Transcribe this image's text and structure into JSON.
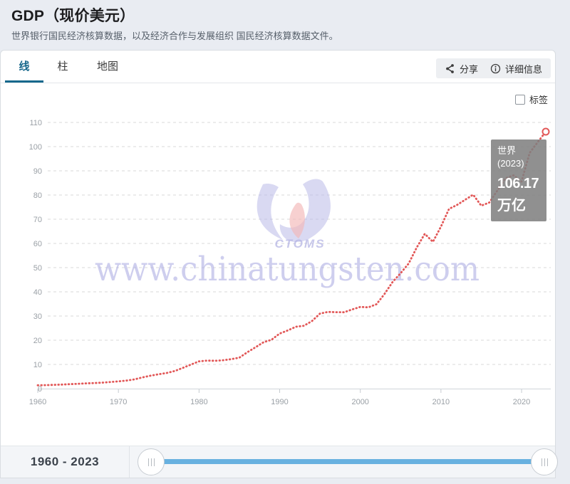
{
  "page": {
    "title": "GDP（现价美元）",
    "subtitle": "世界银行国民经济核算数据，以及经济合作与发展组织 国民经济核算数据文件。"
  },
  "tabs": [
    {
      "label": "线",
      "active": true
    },
    {
      "label": "柱",
      "active": false
    },
    {
      "label": "地图",
      "active": false
    }
  ],
  "toolbar": {
    "share": "分享",
    "details": "详细信息"
  },
  "chart_controls": {
    "labels_checkbox": "标签",
    "checked": false
  },
  "tooltip": {
    "series": "世界",
    "year_label": "(2023)",
    "value": "106.17",
    "unit": "万亿"
  },
  "watermark": {
    "url_text": "www.chinatungsten.com",
    "logo_text": "CTOMS"
  },
  "range_bar": {
    "label": "1960 - 2023"
  },
  "colors": {
    "accent_tab": "#17688c",
    "line": "#e25858",
    "slider_track": "#68b1e0",
    "tooltip_bg": "rgba(127,127,127,0.87)",
    "watermark_text": "#adade3",
    "grid": "#dadada",
    "axis_label": "#9aa0a6"
  },
  "chart_data": {
    "type": "line",
    "title": "GDP（现价美元）",
    "unit": "万亿",
    "legend": "none",
    "grid": "horizontal-dashed",
    "line_style": "dotted",
    "ylim": [
      0,
      110
    ],
    "ytick_step": 10,
    "xticks": [
      1960,
      1970,
      1980,
      1990,
      2000,
      2010,
      2020
    ],
    "years": [
      1960,
      1961,
      1962,
      1963,
      1964,
      1965,
      1966,
      1967,
      1968,
      1969,
      1970,
      1971,
      1972,
      1973,
      1974,
      1975,
      1976,
      1977,
      1978,
      1979,
      1980,
      1981,
      1982,
      1983,
      1984,
      1985,
      1986,
      1987,
      1988,
      1989,
      1990,
      1991,
      1992,
      1993,
      1994,
      1995,
      1996,
      1997,
      1998,
      1999,
      2000,
      2001,
      2002,
      2003,
      2004,
      2005,
      2006,
      2007,
      2008,
      2009,
      2010,
      2011,
      2012,
      2013,
      2014,
      2015,
      2016,
      2017,
      2018,
      2019,
      2020,
      2021,
      2022,
      2023
    ],
    "series": [
      {
        "name": "世界",
        "values": [
          1.39,
          1.45,
          1.56,
          1.68,
          1.84,
          2.0,
          2.17,
          2.3,
          2.48,
          2.74,
          3.0,
          3.31,
          3.82,
          4.64,
          5.34,
          5.95,
          6.46,
          7.29,
          8.58,
          9.95,
          11.27,
          11.59,
          11.49,
          11.75,
          12.17,
          12.79,
          15.07,
          17.1,
          19.18,
          20.22,
          22.76,
          24.02,
          25.56,
          25.97,
          27.92,
          31.01,
          31.71,
          31.6,
          31.57,
          32.73,
          33.76,
          33.59,
          34.86,
          39.11,
          44.05,
          47.72,
          51.72,
          58.32,
          63.97,
          60.66,
          66.96,
          74.26,
          75.91,
          78.02,
          80.16,
          75.6,
          76.9,
          81.86,
          86.9,
          88.14,
          85.59,
          97.41,
          101.86,
          106.17
        ]
      }
    ],
    "last_point": {
      "year": 2023,
      "value": 106.17
    }
  }
}
